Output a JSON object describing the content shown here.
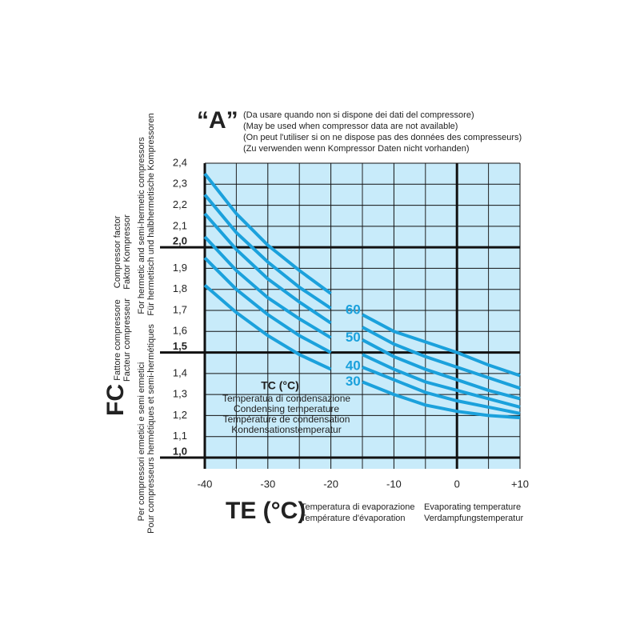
{
  "chart_data": {
    "type": "line",
    "title": "“A”",
    "subtitle": [
      "(Da usare quando non si dispone dei dati del compressore)",
      "(May be used when compressor data are not available)",
      "(On peut l'utiliser si on ne dispose pas des données des compresseurs)",
      "(Zu verwenden wenn Kompressor Daten nicht vorhanden)"
    ],
    "y_label": "FC",
    "y_label_notes": [
      "Compressor factor",
      "Faktor Kompressor",
      "For hermetic and semi-hermetic compressors",
      "Für hermetisch und halbhermetische Kompressoren",
      "Fattore compressore",
      "Facteur compresseur",
      "Per compressori ermetici e semi ermetici",
      "Pour compresseurs hermétiques et semi-hermétiques"
    ],
    "x_label": "TE (°C)",
    "x_label_notes": [
      "Temperatura di evaporazione",
      "Température d'évaporation",
      "Evaporating temperature",
      "Verdampfungstemperatur"
    ],
    "legend_title": "TC (°C)",
    "legend_notes": [
      "Temperatua di condensazione",
      "Condensing temperature",
      "Température de condensation",
      "Kondensationstemperatur"
    ],
    "x": [
      -40,
      -35,
      -30,
      -25,
      -20,
      -17.5,
      -15,
      -10,
      -5,
      0,
      5,
      10
    ],
    "series": [
      {
        "name": "60",
        "color": "#1ba1dc",
        "values": [
          2.35,
          2.16,
          2.01,
          1.89,
          1.78,
          null,
          1.68,
          1.6,
          1.55,
          1.5,
          1.44,
          1.39
        ]
      },
      {
        "color": "#1ba1dc",
        "values": [
          2.25,
          2.07,
          1.93,
          1.81,
          1.71,
          null,
          1.62,
          1.54,
          1.48,
          1.43,
          1.38,
          1.33
        ]
      },
      {
        "name": "50",
        "color": "#1ba1dc",
        "values": [
          2.16,
          1.99,
          1.85,
          1.74,
          1.64,
          null,
          1.56,
          1.48,
          1.42,
          1.37,
          1.32,
          1.28
        ]
      },
      {
        "color": "#1ba1dc",
        "values": [
          2.05,
          1.89,
          1.76,
          1.66,
          1.57,
          null,
          1.49,
          1.42,
          1.36,
          1.32,
          1.28,
          1.24
        ]
      },
      {
        "name": "40",
        "color": "#1ba1dc",
        "values": [
          1.95,
          1.8,
          1.68,
          1.58,
          1.5,
          null,
          1.43,
          1.37,
          1.31,
          1.27,
          1.24,
          1.21
        ]
      },
      {
        "name": "30",
        "color": "#1ba1dc",
        "values": [
          1.82,
          1.69,
          1.58,
          1.49,
          1.42,
          null,
          1.36,
          1.3,
          1.25,
          1.22,
          1.2,
          1.19
        ]
      }
    ],
    "xlim": [
      -40,
      10
    ],
    "xticks": [
      {
        "value": -40,
        "label": "-40",
        "major": true
      },
      -30,
      -20,
      -10,
      {
        "value": 0,
        "label": "0",
        "major": true
      },
      {
        "value": 10,
        "label": "+10"
      }
    ],
    "xminor": [
      -35,
      -25,
      -15,
      -5,
      5
    ],
    "ylim": [
      1.0,
      2.4
    ],
    "yticks": [
      {
        "value": 1.0,
        "label": "1,0",
        "major": true
      },
      {
        "value": 1.1,
        "label": "1,1"
      },
      {
        "value": 1.2,
        "label": "1,2"
      },
      {
        "value": 1.3,
        "label": "1,3"
      },
      {
        "value": 1.4,
        "label": "1,4"
      },
      {
        "value": 1.5,
        "label": "1,5",
        "major": true
      },
      {
        "value": 1.6,
        "label": "1,6"
      },
      {
        "value": 1.7,
        "label": "1,7"
      },
      {
        "value": 1.8,
        "label": "1,8"
      },
      {
        "value": 1.9,
        "label": "1,9"
      },
      {
        "value": 2.0,
        "label": "2,0",
        "major": true
      },
      {
        "value": 2.1,
        "label": "2,1"
      },
      {
        "value": 2.2,
        "label": "2,2"
      },
      {
        "value": 2.3,
        "label": "2,3"
      },
      {
        "value": 2.4,
        "label": "2,4"
      }
    ],
    "background": "#c8ebfa",
    "grid": true
  }
}
